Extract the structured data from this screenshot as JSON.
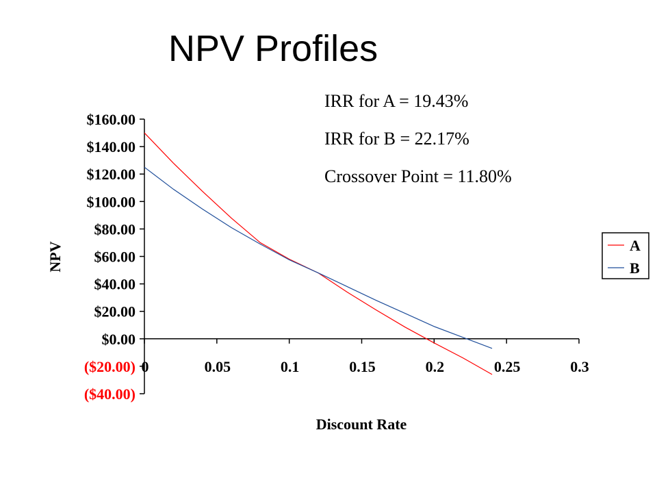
{
  "slide": {
    "title": "NPV Profiles",
    "notes": [
      "IRR for A = 19.43%",
      "IRR for B = 22.17%",
      "Crossover Point = 11.80%"
    ]
  },
  "chart_data": {
    "type": "line",
    "xlabel": "Discount Rate",
    "ylabel": "NPV",
    "xlim": [
      0,
      0.3
    ],
    "ylim": [
      -40,
      160
    ],
    "x_ticks": [
      0,
      0.05,
      0.1,
      0.15,
      0.2,
      0.25,
      0.3
    ],
    "x_tick_labels": [
      "0",
      "0.05",
      "0.1",
      "0.15",
      "0.2",
      "0.25",
      "0.3"
    ],
    "y_ticks": [
      160,
      140,
      120,
      100,
      80,
      60,
      40,
      20,
      0,
      -20,
      -40
    ],
    "y_tick_labels": [
      "$160.00",
      "$140.00",
      "$120.00",
      "$100.00",
      "$80.00",
      "$60.00",
      "$40.00",
      "$20.00",
      "$0.00",
      "($20.00)",
      "($40.00)"
    ],
    "negative_color": "#ff0000",
    "grid": false,
    "legend_position": "right",
    "series": [
      {
        "name": "A",
        "color": "#ff0000",
        "x": [
          0,
          0.02,
          0.04,
          0.06,
          0.08,
          0.1,
          0.12,
          0.14,
          0.16,
          0.18,
          0.2,
          0.22,
          0.24
        ],
        "y": [
          150,
          128,
          107.5,
          88,
          70,
          58,
          48,
          34,
          21,
          8.5,
          -3,
          -14,
          -26
        ]
      },
      {
        "name": "B",
        "color": "#1f4e9a",
        "x": [
          0,
          0.02,
          0.04,
          0.06,
          0.08,
          0.1,
          0.12,
          0.14,
          0.16,
          0.18,
          0.2,
          0.22,
          0.24
        ],
        "y": [
          125,
          109,
          94.5,
          81,
          69,
          57.5,
          48,
          38,
          28,
          18.5,
          9,
          1,
          -7
        ]
      }
    ]
  }
}
